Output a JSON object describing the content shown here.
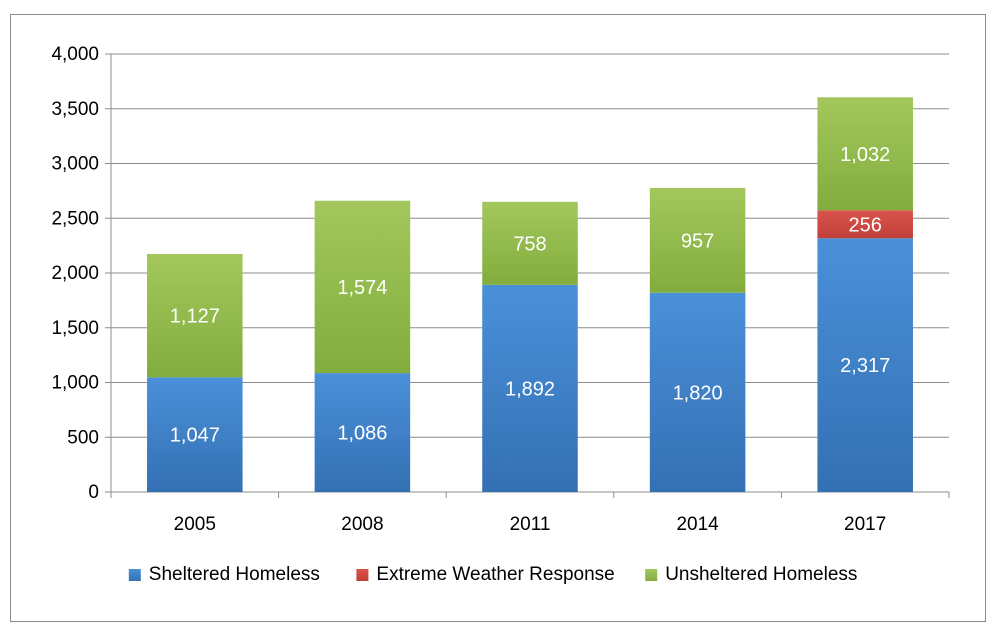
{
  "chart_data": {
    "type": "bar",
    "stacked": true,
    "title": "",
    "xlabel": "",
    "ylabel": "",
    "categories": [
      "2005",
      "2008",
      "2011",
      "2014",
      "2017"
    ],
    "ylim": [
      0,
      4000
    ],
    "yticks": [
      0,
      500,
      1000,
      1500,
      2000,
      2500,
      3000,
      3500,
      4000
    ],
    "ytick_labels": [
      "0",
      "500",
      "1,000",
      "1,500",
      "2,000",
      "2,500",
      "3,000",
      "3,500",
      "4,000"
    ],
    "grid": true,
    "legend_position": "bottom",
    "series": [
      {
        "name": "Sheltered Homeless",
        "color": "#3f7fc4",
        "values": [
          1047,
          1086,
          1892,
          1820,
          2317
        ],
        "labels": [
          "1,047",
          "1,086",
          "1,892",
          "1,820",
          "2,317"
        ]
      },
      {
        "name": "Extreme Weather Response",
        "color": "#cf4a42",
        "values": [
          0,
          0,
          0,
          0,
          256
        ],
        "labels": [
          "",
          "",
          "",
          "",
          "256"
        ]
      },
      {
        "name": "Unsheltered Homeless",
        "color": "#92bb4c",
        "values": [
          1127,
          1574,
          758,
          957,
          1032
        ],
        "labels": [
          "1,127",
          "1,574",
          "758",
          "957",
          "1,032"
        ]
      }
    ]
  }
}
